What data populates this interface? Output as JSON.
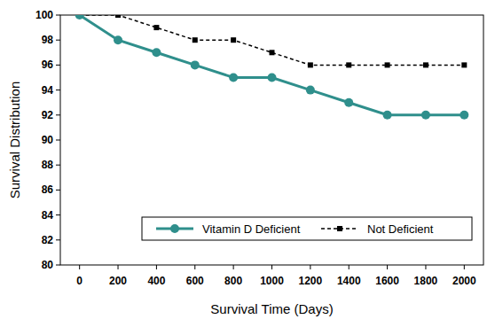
{
  "chart_data": {
    "type": "line",
    "x_label": "Survival Time (Days)",
    "y_label": "Survival Distribution",
    "x": [
      0,
      200,
      400,
      600,
      800,
      1000,
      1200,
      1400,
      1600,
      1800,
      2000
    ],
    "series": [
      {
        "name": "Vitamin D Deficient",
        "color": "#2f8f8c",
        "marker": "circle",
        "line_style": "solid",
        "values": [
          100,
          98,
          97,
          96,
          95,
          95,
          94,
          93,
          92,
          92,
          92
        ]
      },
      {
        "name": "Not Deficient",
        "color": "#000000",
        "marker": "square",
        "line_style": "dashed",
        "values": [
          100,
          100,
          99,
          98,
          98,
          97,
          96,
          96,
          96,
          96,
          96
        ]
      }
    ],
    "xlim": [
      -100,
      2100
    ],
    "xticks": [
      0,
      200,
      400,
      600,
      800,
      1000,
      1200,
      1400,
      1600,
      1800,
      2000
    ],
    "ylim": [
      80,
      100
    ],
    "yticks": [
      80,
      82,
      84,
      86,
      88,
      90,
      92,
      94,
      96,
      98,
      100
    ],
    "grid": false,
    "legend": "lower right"
  }
}
